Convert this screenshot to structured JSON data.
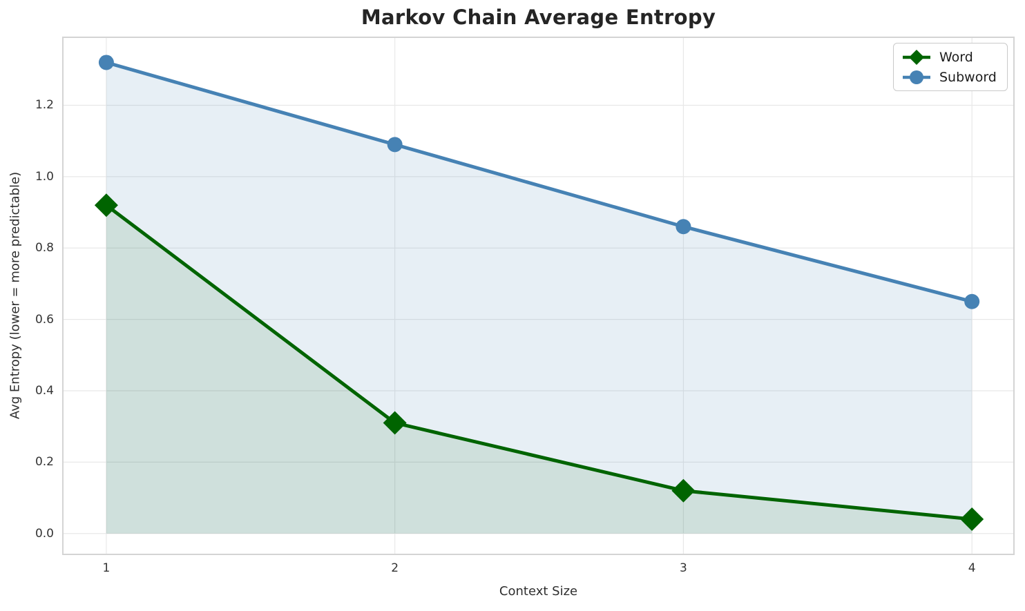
{
  "title_note": "matplotlib-style line chart",
  "colors": {
    "background": "#ffffff",
    "grid": "#e8e8e8",
    "spine": "#d4d4d4",
    "title_text": "#252525",
    "tick_text": "#333333",
    "axis_label_text": "#2e2e2e",
    "legend_border": "#c9c9c9",
    "word": "#006400",
    "subword": "#4682b4"
  },
  "chart_data": {
    "type": "line",
    "title": "Markov Chain Average Entropy",
    "xlabel": "Context Size",
    "ylabel": "Avg Entropy (lower = more predictable)",
    "x": [
      1,
      2,
      3,
      4
    ],
    "series": [
      {
        "name": "Word",
        "values": [
          0.92,
          0.31,
          0.12,
          0.04
        ],
        "color": "#006400",
        "fill": "rgba(0,100,0,0.10)",
        "marker": "diamond",
        "fill_to_zero": true
      },
      {
        "name": "Subword",
        "values": [
          1.32,
          1.09,
          0.86,
          0.65
        ],
        "color": "#4682b4",
        "fill": "rgba(70,130,180,0.13)",
        "marker": "circle",
        "fill_to_zero": true
      }
    ],
    "xticks": [
      "1",
      "2",
      "3",
      "4"
    ],
    "xtick_values": [
      1,
      2,
      3,
      4
    ],
    "yticks": [
      "0.0",
      "0.2",
      "0.4",
      "0.6",
      "0.8",
      "1.0",
      "1.2"
    ],
    "ytick_values": [
      0.0,
      0.2,
      0.4,
      0.6,
      0.8,
      1.0,
      1.2
    ],
    "xlim": [
      0.847,
      4.148
    ],
    "ylim": [
      -0.0605,
      1.3925
    ],
    "grid": true,
    "legend_position": "upper right"
  },
  "legend": {
    "items": [
      {
        "label": "Word",
        "icon": "diamond-icon"
      },
      {
        "label": "Subword",
        "icon": "circle-icon"
      }
    ]
  }
}
